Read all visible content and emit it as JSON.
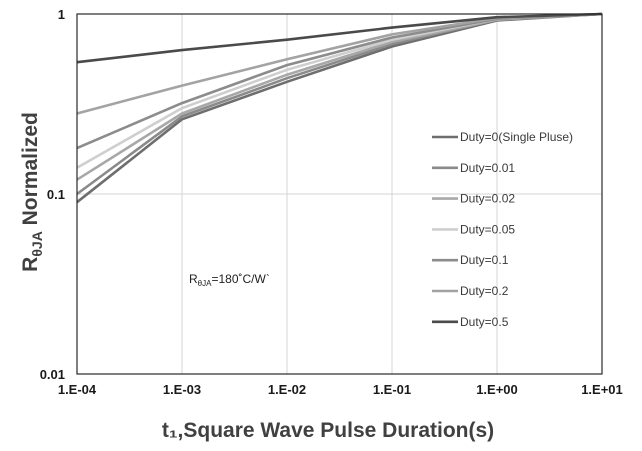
{
  "chart_data": {
    "type": "line",
    "x_scale": "log",
    "y_scale": "log",
    "xlim": [
      0.0001,
      10
    ],
    "ylim": [
      0.01,
      1
    ],
    "grid": true,
    "legend_position": "right",
    "x_ticks": [
      {
        "value": 0.0001,
        "label": "1.E-04"
      },
      {
        "value": 0.001,
        "label": "1.E-03"
      },
      {
        "value": 0.01,
        "label": "1.E-02"
      },
      {
        "value": 0.1,
        "label": "1.E-01"
      },
      {
        "value": 1,
        "label": "1.E+00"
      },
      {
        "value": 10,
        "label": "1.E+01"
      }
    ],
    "y_ticks": [
      {
        "value": 0.01,
        "label": "0.01"
      },
      {
        "value": 0.1,
        "label": "0.1"
      },
      {
        "value": 1,
        "label": "1"
      }
    ],
    "xlabel": "t₁,Square Wave Pulse Duration(s)",
    "ylabel_main": "R",
    "ylabel_sub": "θJA",
    "ylabel_rest": " Normalized",
    "annotation": {
      "main": "R",
      "sub": "θJA",
      "rest": "=180˚C/Wˋ"
    },
    "x": [
      0.0001,
      0.001,
      0.01,
      0.1,
      1,
      10
    ],
    "series": [
      {
        "name": "Duty=0(Single Pluse)",
        "color": "#6e6e6e",
        "values": [
          0.09,
          0.26,
          0.42,
          0.66,
          0.92,
          1.0
        ]
      },
      {
        "name": "Duty=0.01",
        "color": "#8a8a8a",
        "values": [
          0.1,
          0.27,
          0.44,
          0.68,
          0.93,
          1.0
        ]
      },
      {
        "name": "Duty=0.02",
        "color": "#a8a8a8",
        "values": [
          0.12,
          0.28,
          0.46,
          0.7,
          0.93,
          1.0
        ]
      },
      {
        "name": "Duty=0.05",
        "color": "#cfcfcf",
        "values": [
          0.14,
          0.3,
          0.49,
          0.72,
          0.94,
          1.0
        ]
      },
      {
        "name": "Duty=0.1",
        "color": "#8c8c8c",
        "values": [
          0.18,
          0.32,
          0.52,
          0.74,
          0.94,
          1.0
        ]
      },
      {
        "name": "Duty=0.2",
        "color": "#a3a3a3",
        "values": [
          0.28,
          0.4,
          0.56,
          0.77,
          0.95,
          1.0
        ]
      },
      {
        "name": "Duty=0.5",
        "color": "#4a4a4a",
        "values": [
          0.54,
          0.63,
          0.72,
          0.84,
          0.96,
          1.0
        ]
      }
    ]
  }
}
